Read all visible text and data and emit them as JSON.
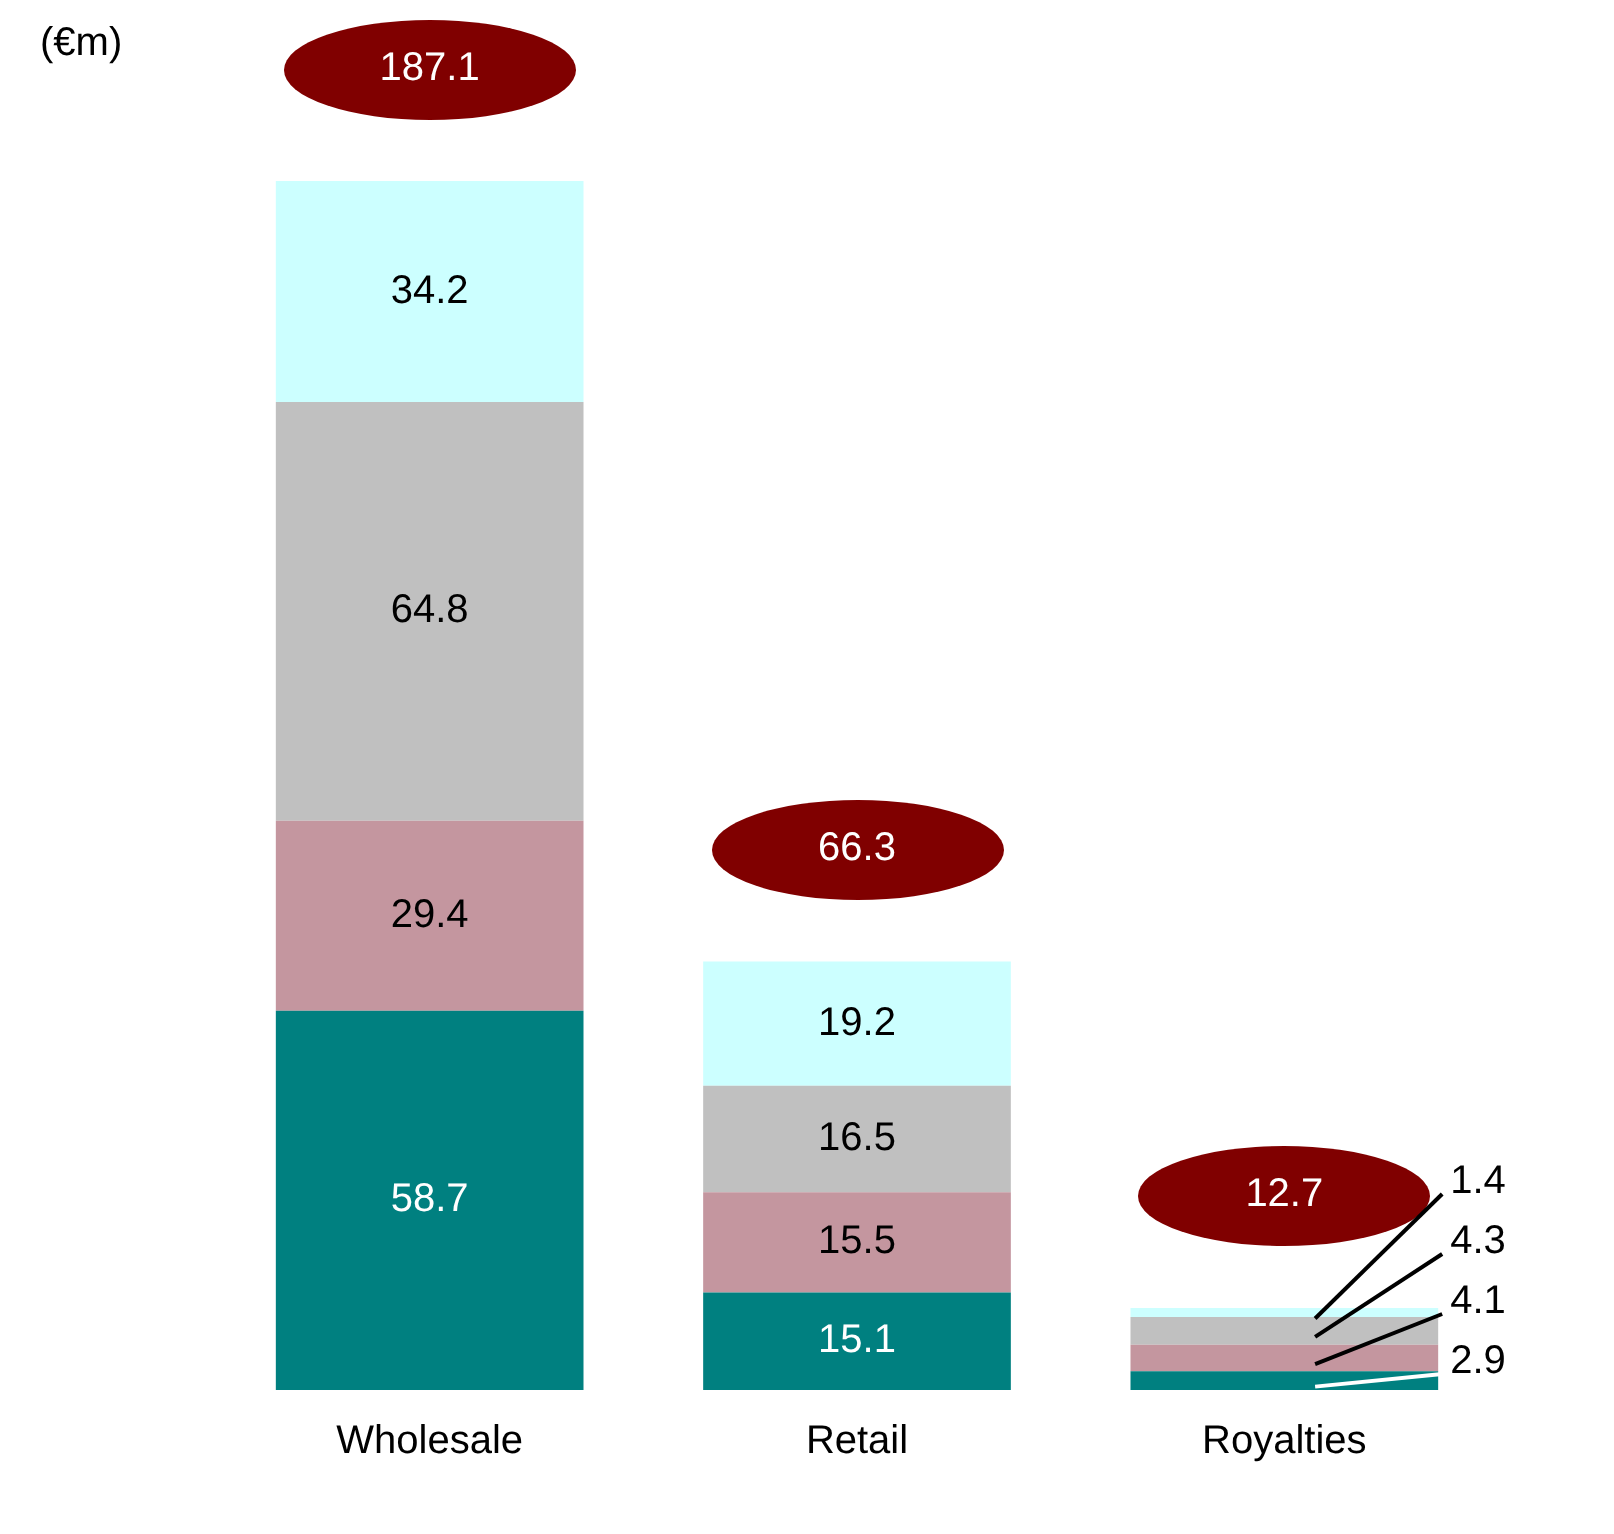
{
  "chart_data": {
    "type": "bar",
    "stacked": true,
    "ylabel": "(€m)",
    "categories": [
      "Wholesale",
      "Retail",
      "Royalties"
    ],
    "series": [
      {
        "color": "#008080",
        "values": [
          58.7,
          15.1,
          2.9
        ]
      },
      {
        "color": "#c4969f",
        "values": [
          29.4,
          15.5,
          4.1
        ]
      },
      {
        "color": "#c0c0c0",
        "values": [
          64.8,
          16.5,
          4.3
        ]
      },
      {
        "color": "#ccffff",
        "values": [
          34.2,
          19.2,
          1.4
        ]
      }
    ],
    "data_labels": true,
    "totals": [
      "187.1",
      "66.3",
      "12.7"
    ],
    "legend": false,
    "grid": false
  }
}
